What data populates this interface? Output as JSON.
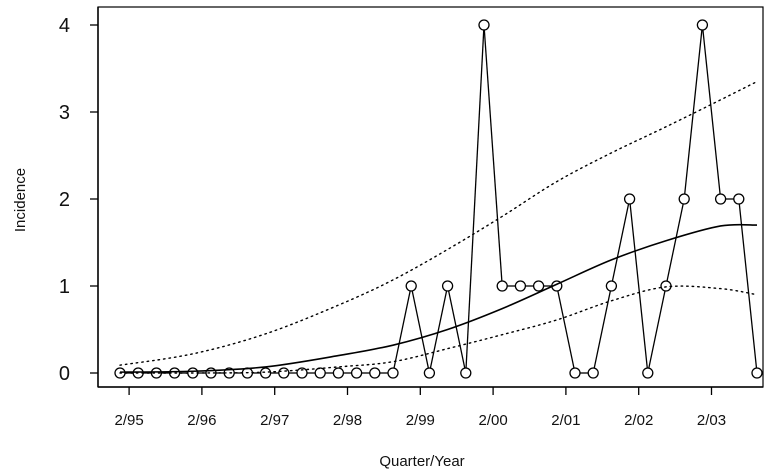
{
  "chart_data": {
    "type": "line",
    "title": "",
    "xlabel": "Quarter/Year",
    "ylabel": "Incidence",
    "ylim": [
      0,
      4
    ],
    "y_ticks": [
      "0",
      "1",
      "2",
      "3",
      "4"
    ],
    "x_ticks": [
      {
        "label": "2/95",
        "index": 0.5
      },
      {
        "label": "2/96",
        "index": 4.5
      },
      {
        "label": "2/97",
        "index": 8.5
      },
      {
        "label": "2/98",
        "index": 12.5
      },
      {
        "label": "2/99",
        "index": 16.5
      },
      {
        "label": "2/00",
        "index": 20.5
      },
      {
        "label": "2/01",
        "index": 24.5
      },
      {
        "label": "2/02",
        "index": 28.5
      },
      {
        "label": "2/03",
        "index": 32.5
      }
    ],
    "grid": false,
    "series": [
      {
        "style": "line-with-circle-markers",
        "values": [
          0,
          0,
          0,
          0,
          0,
          0,
          0,
          0,
          0,
          0,
          0,
          0,
          0,
          0,
          0,
          0,
          1,
          0,
          1,
          0,
          4,
          1,
          1,
          1,
          1,
          0,
          0,
          1,
          2,
          0,
          1,
          2,
          4,
          2,
          2,
          0
        ]
      },
      {
        "style": "solid-curve",
        "points": [
          [
            0,
            0.01
          ],
          [
            4,
            0.02
          ],
          [
            8,
            0.07
          ],
          [
            12,
            0.2
          ],
          [
            15,
            0.32
          ],
          [
            18,
            0.5
          ],
          [
            21,
            0.74
          ],
          [
            24,
            1.02
          ],
          [
            27,
            1.3
          ],
          [
            30,
            1.52
          ],
          [
            33,
            1.69
          ],
          [
            35,
            1.7
          ]
        ]
      },
      {
        "style": "dotted-upper",
        "points": [
          [
            0,
            0.09
          ],
          [
            4,
            0.22
          ],
          [
            8,
            0.45
          ],
          [
            12,
            0.78
          ],
          [
            15,
            1.07
          ],
          [
            18,
            1.42
          ],
          [
            21,
            1.8
          ],
          [
            24,
            2.2
          ],
          [
            27,
            2.53
          ],
          [
            30,
            2.83
          ],
          [
            33,
            3.14
          ],
          [
            35,
            3.35
          ]
        ]
      },
      {
        "style": "dotted-lower",
        "points": [
          [
            0,
            0
          ],
          [
            4,
            0
          ],
          [
            8,
            0.01
          ],
          [
            12,
            0.07
          ],
          [
            15,
            0.13
          ],
          [
            18,
            0.28
          ],
          [
            21,
            0.44
          ],
          [
            24,
            0.61
          ],
          [
            27,
            0.83
          ],
          [
            30,
            0.99
          ],
          [
            33,
            0.97
          ],
          [
            35,
            0.9
          ]
        ]
      }
    ]
  }
}
